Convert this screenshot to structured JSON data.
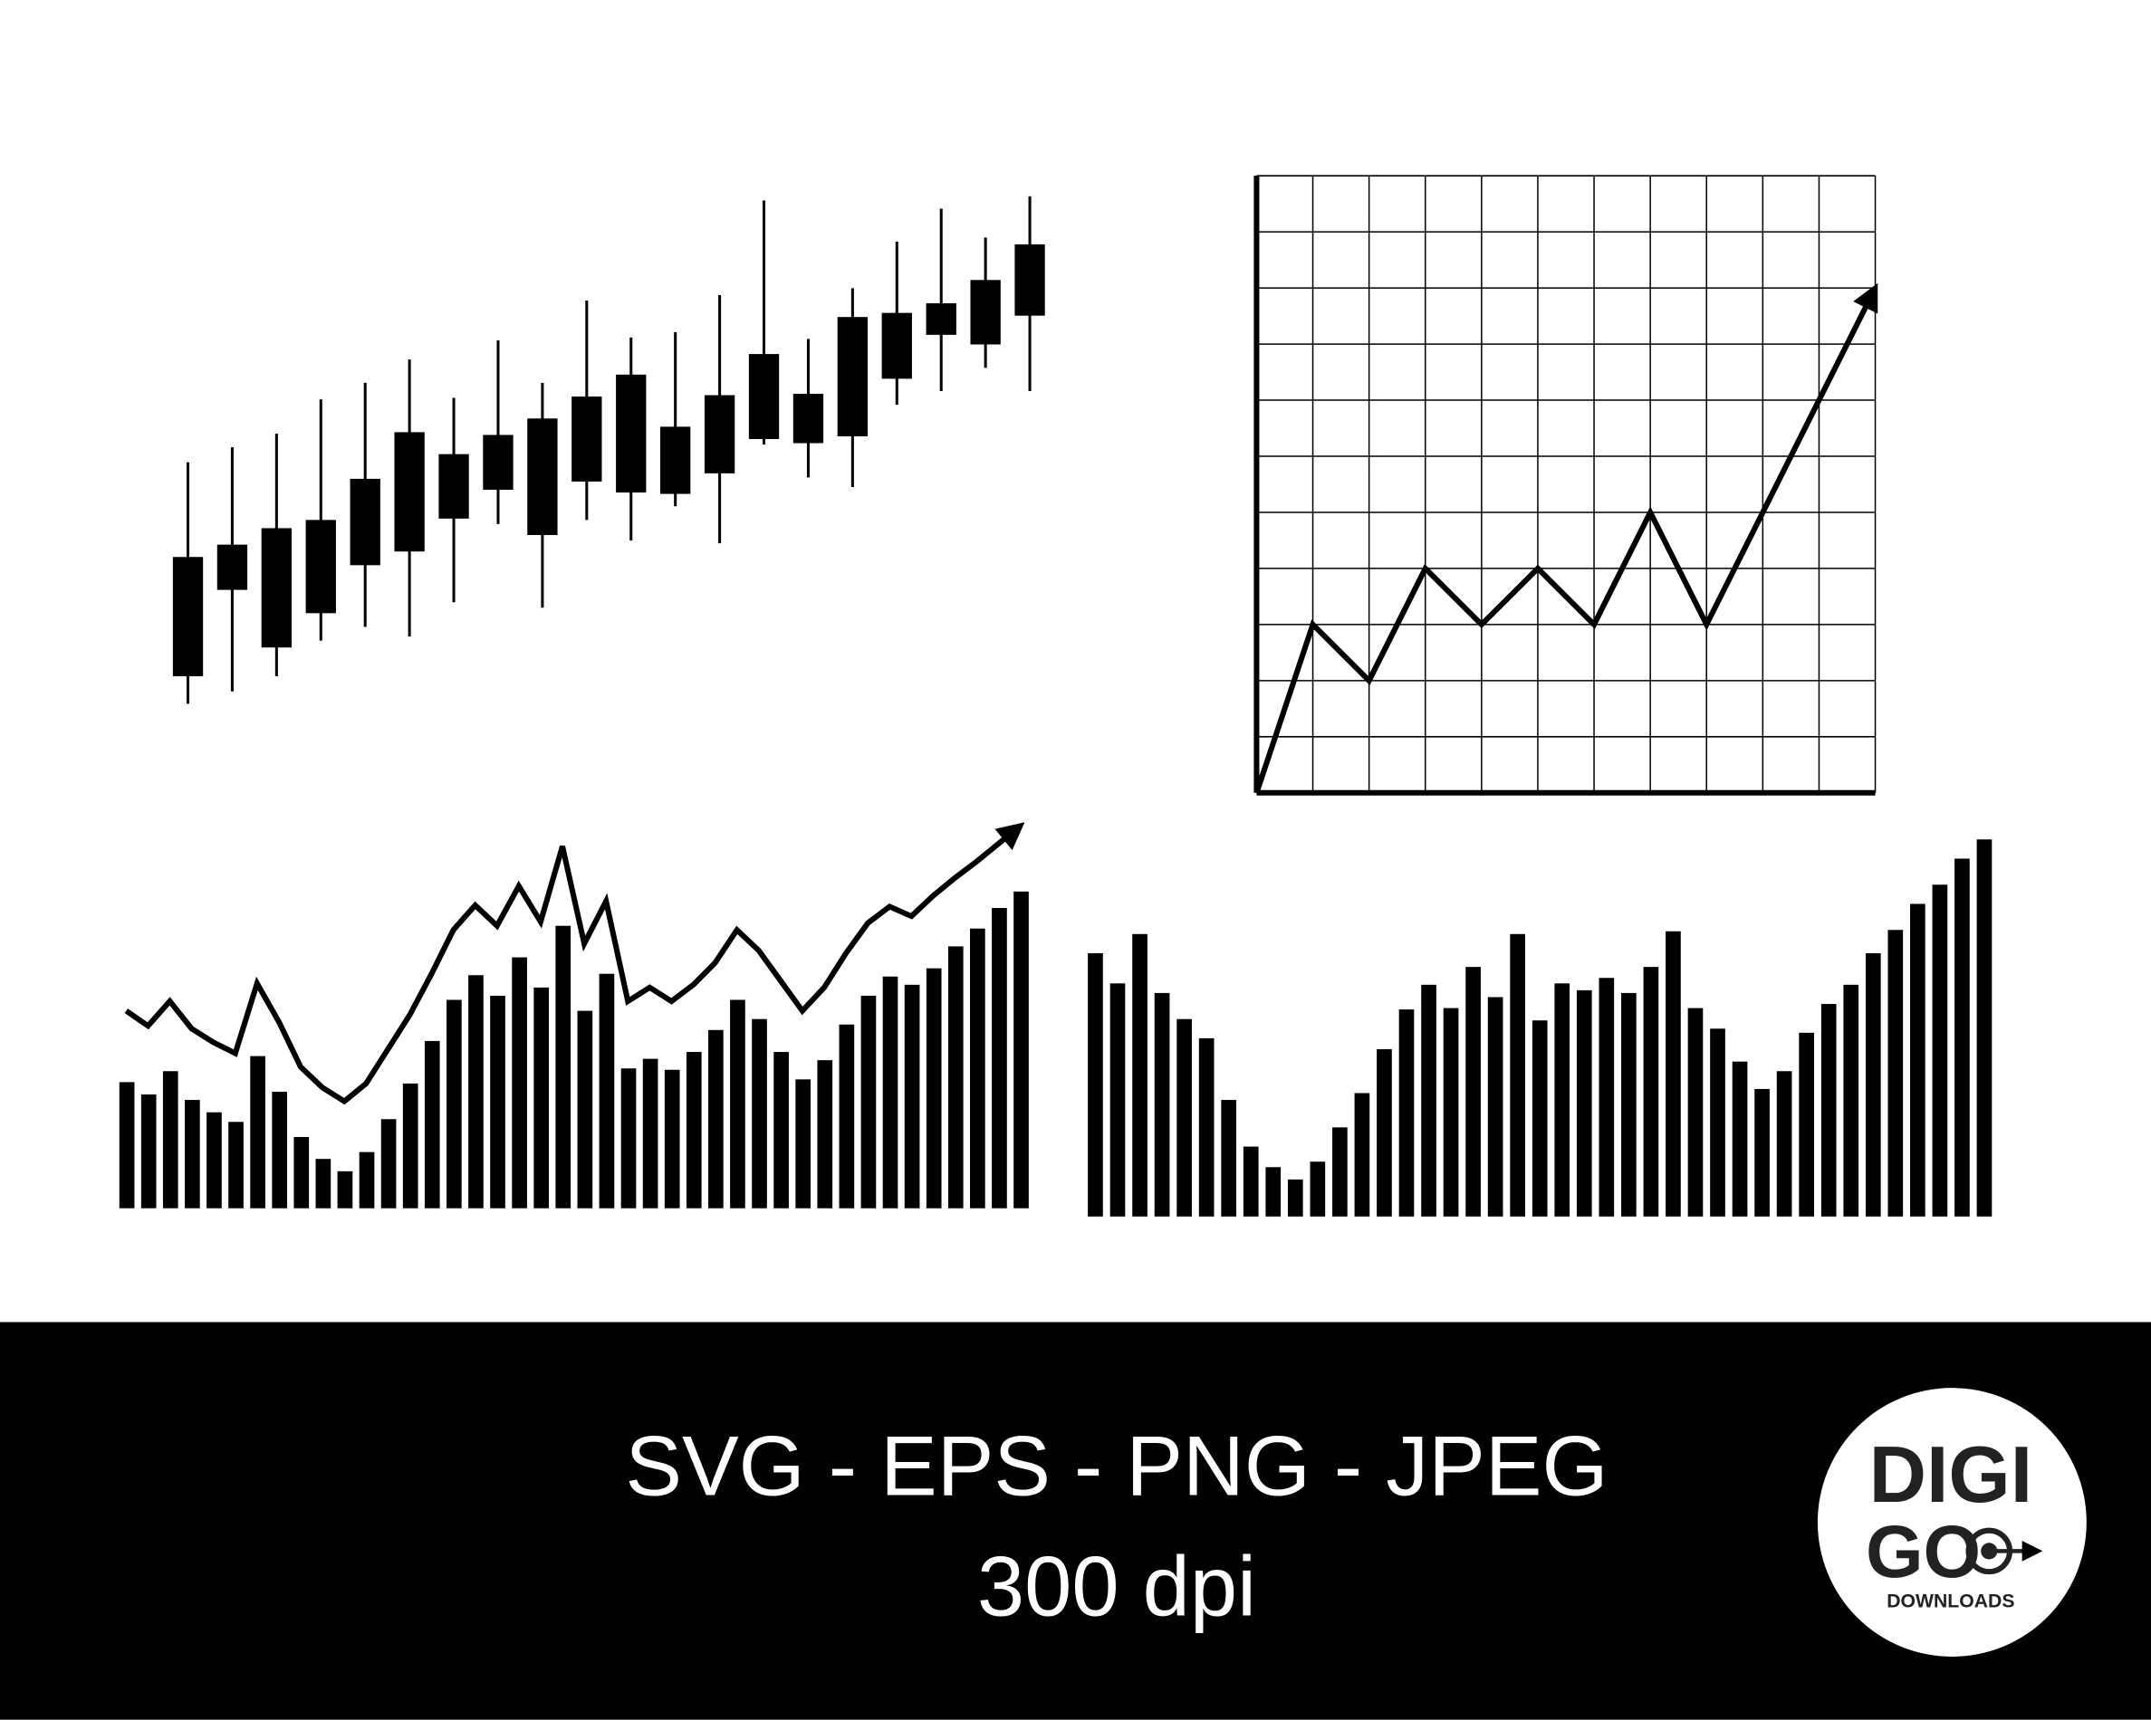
{
  "chart_data": [
    {
      "type": "candlestick",
      "open": [
        27,
        90,
        48,
        73,
        108,
        118,
        142,
        163,
        130,
        169,
        161,
        160,
        175,
        200,
        197,
        202,
        244,
        276,
        269,
        290
      ],
      "close": [
        114,
        123,
        135,
        141,
        171,
        205,
        189,
        203,
        215,
        231,
        247,
        209,
        232,
        262,
        233,
        289,
        292,
        299,
        316,
        342
      ],
      "high": [
        183,
        194,
        204,
        229,
        241,
        258,
        230,
        272,
        241,
        301,
        274,
        278,
        305,
        374,
        273,
        310,
        344,
        368,
        347,
        377
      ],
      "low": [
        7,
        16,
        27,
        53,
        63,
        56,
        81,
        138,
        77,
        141,
        126,
        151,
        124,
        196,
        172,
        165,
        225,
        235,
        252,
        235
      ],
      "ylim": [
        0,
        400
      ],
      "color": "#000000"
    },
    {
      "type": "line",
      "x": [
        0,
        1,
        2,
        3,
        4,
        5,
        6,
        7,
        8,
        9,
        10,
        11
      ],
      "values": [
        0,
        3,
        2,
        4,
        3,
        4,
        3,
        5,
        3,
        5,
        7,
        9
      ],
      "xlim": [
        0,
        11
      ],
      "ylim": [
        0,
        11
      ],
      "xticks": [
        0,
        1,
        2,
        3,
        4,
        5,
        6,
        7,
        8,
        9,
        10,
        11
      ],
      "yticks": [
        0,
        1,
        2,
        3,
        4,
        5,
        6,
        7,
        8,
        9,
        10,
        11
      ],
      "grid": true,
      "arrow": true,
      "color": "#000000"
    },
    {
      "type": "bar-line",
      "bars": [
        92,
        83,
        100,
        79,
        70,
        63,
        111,
        85,
        52,
        36,
        27,
        41,
        65,
        91,
        122,
        152,
        170,
        155,
        183,
        161,
        206,
        144,
        171,
        102,
        109,
        101,
        114,
        130,
        152,
        138,
        114,
        94,
        108,
        134,
        155,
        169,
        163,
        175,
        191,
        204,
        219,
        231
      ],
      "line": [
        144,
        133,
        151,
        131,
        121,
        113,
        164,
        136,
        103,
        88,
        78,
        91,
        116,
        141,
        171,
        203,
        221,
        206,
        235,
        209,
        264,
        193,
        224,
        151,
        161,
        151,
        163,
        179,
        203,
        188,
        166,
        144,
        161,
        186,
        208,
        220,
        213,
        228,
        241,
        253,
        266,
        279
      ],
      "ylim": [
        0,
        300
      ],
      "arrow": true,
      "color": "#000000"
    },
    {
      "type": "bar",
      "values": [
        192,
        170,
        206,
        163,
        144,
        130,
        85,
        51,
        36,
        27,
        40,
        65,
        90,
        122,
        151,
        169,
        152,
        182,
        160,
        206,
        143,
        170,
        165,
        174,
        163,
        182,
        208,
        152,
        137,
        113,
        93,
        106,
        134,
        155,
        169,
        192,
        209,
        228,
        242,
        261,
        275
      ],
      "ylim": [
        0,
        300
      ],
      "color": "#000000"
    }
  ],
  "banner": {
    "formats": "SVG - EPS - PNG - JPEG",
    "resolution": "300 dpi"
  },
  "logo": {
    "line1": "DIGI",
    "line2": "GO",
    "line3": "DOWNLOADS"
  }
}
